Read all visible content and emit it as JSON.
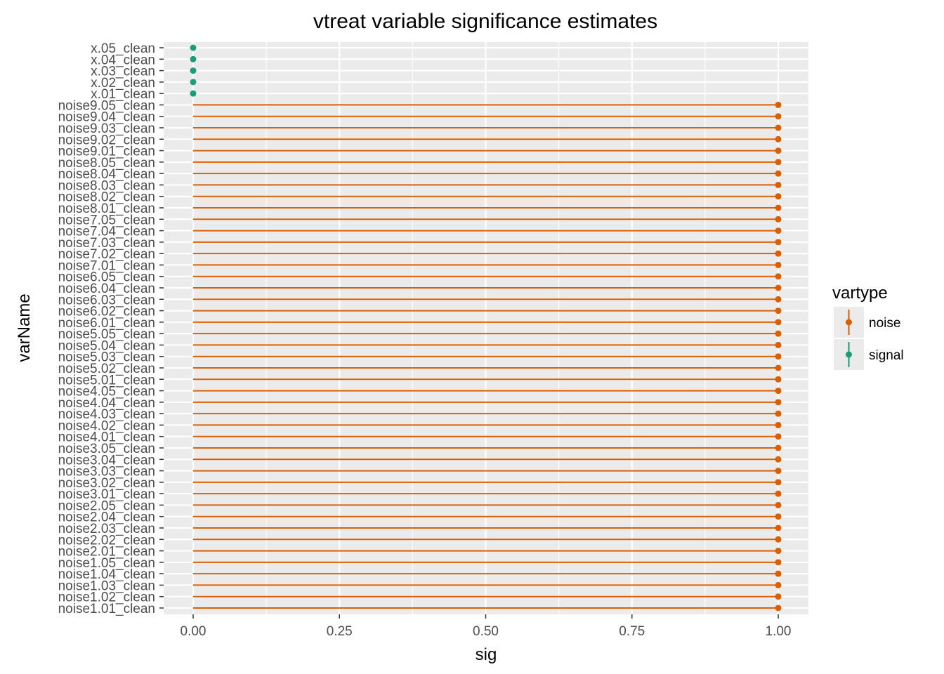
{
  "chart_data": {
    "type": "lollipop",
    "title": "vtreat variable significance estimates",
    "xlabel": "sig",
    "ylabel": "varName",
    "xlim": [
      -0.06,
      1.05
    ],
    "xticks": [
      0.0,
      0.25,
      0.5,
      0.75,
      1.0
    ],
    "xtick_labels": [
      "0.00",
      "0.25",
      "0.50",
      "0.75",
      "1.00"
    ],
    "grid": true,
    "legend": {
      "title": "vartype",
      "placement": "right",
      "entries": [
        {
          "label": "noise",
          "color": "#d95f02"
        },
        {
          "label": "signal",
          "color": "#1b9e77"
        }
      ]
    },
    "colors": {
      "panel": "#ebebeb",
      "grid": "#ffffff",
      "noise": "#d95f02",
      "signal": "#1b9e77"
    },
    "points": [
      {
        "name": "x.05_clean",
        "sig": 0.0,
        "vartype": "signal"
      },
      {
        "name": "x.04_clean",
        "sig": 0.0,
        "vartype": "signal"
      },
      {
        "name": "x.03_clean",
        "sig": 0.0,
        "vartype": "signal"
      },
      {
        "name": "x.02_clean",
        "sig": 0.0,
        "vartype": "signal"
      },
      {
        "name": "x.01_clean",
        "sig": 0.0,
        "vartype": "signal"
      },
      {
        "name": "noise9.05_clean",
        "sig": 1.0,
        "vartype": "noise"
      },
      {
        "name": "noise9.04_clean",
        "sig": 1.0,
        "vartype": "noise"
      },
      {
        "name": "noise9.03_clean",
        "sig": 1.0,
        "vartype": "noise"
      },
      {
        "name": "noise9.02_clean",
        "sig": 1.0,
        "vartype": "noise"
      },
      {
        "name": "noise9.01_clean",
        "sig": 1.0,
        "vartype": "noise"
      },
      {
        "name": "noise8.05_clean",
        "sig": 1.0,
        "vartype": "noise"
      },
      {
        "name": "noise8.04_clean",
        "sig": 1.0,
        "vartype": "noise"
      },
      {
        "name": "noise8.03_clean",
        "sig": 1.0,
        "vartype": "noise"
      },
      {
        "name": "noise8.02_clean",
        "sig": 1.0,
        "vartype": "noise"
      },
      {
        "name": "noise8.01_clean",
        "sig": 1.0,
        "vartype": "noise"
      },
      {
        "name": "noise7.05_clean",
        "sig": 1.0,
        "vartype": "noise"
      },
      {
        "name": "noise7.04_clean",
        "sig": 1.0,
        "vartype": "noise"
      },
      {
        "name": "noise7.03_clean",
        "sig": 1.0,
        "vartype": "noise"
      },
      {
        "name": "noise7.02_clean",
        "sig": 1.0,
        "vartype": "noise"
      },
      {
        "name": "noise7.01_clean",
        "sig": 1.0,
        "vartype": "noise"
      },
      {
        "name": "noise6.05_clean",
        "sig": 1.0,
        "vartype": "noise"
      },
      {
        "name": "noise6.04_clean",
        "sig": 1.0,
        "vartype": "noise"
      },
      {
        "name": "noise6.03_clean",
        "sig": 1.0,
        "vartype": "noise"
      },
      {
        "name": "noise6.02_clean",
        "sig": 1.0,
        "vartype": "noise"
      },
      {
        "name": "noise6.01_clean",
        "sig": 1.0,
        "vartype": "noise"
      },
      {
        "name": "noise5.05_clean",
        "sig": 1.0,
        "vartype": "noise"
      },
      {
        "name": "noise5.04_clean",
        "sig": 1.0,
        "vartype": "noise"
      },
      {
        "name": "noise5.03_clean",
        "sig": 1.0,
        "vartype": "noise"
      },
      {
        "name": "noise5.02_clean",
        "sig": 1.0,
        "vartype": "noise"
      },
      {
        "name": "noise5.01_clean",
        "sig": 1.0,
        "vartype": "noise"
      },
      {
        "name": "noise4.05_clean",
        "sig": 1.0,
        "vartype": "noise"
      },
      {
        "name": "noise4.04_clean",
        "sig": 1.0,
        "vartype": "noise"
      },
      {
        "name": "noise4.03_clean",
        "sig": 1.0,
        "vartype": "noise"
      },
      {
        "name": "noise4.02_clean",
        "sig": 1.0,
        "vartype": "noise"
      },
      {
        "name": "noise4.01_clean",
        "sig": 1.0,
        "vartype": "noise"
      },
      {
        "name": "noise3.05_clean",
        "sig": 1.0,
        "vartype": "noise"
      },
      {
        "name": "noise3.04_clean",
        "sig": 1.0,
        "vartype": "noise"
      },
      {
        "name": "noise3.03_clean",
        "sig": 1.0,
        "vartype": "noise"
      },
      {
        "name": "noise3.02_clean",
        "sig": 1.0,
        "vartype": "noise"
      },
      {
        "name": "noise3.01_clean",
        "sig": 1.0,
        "vartype": "noise"
      },
      {
        "name": "noise2.05_clean",
        "sig": 1.0,
        "vartype": "noise"
      },
      {
        "name": "noise2.04_clean",
        "sig": 1.0,
        "vartype": "noise"
      },
      {
        "name": "noise2.03_clean",
        "sig": 1.0,
        "vartype": "noise"
      },
      {
        "name": "noise2.02_clean",
        "sig": 1.0,
        "vartype": "noise"
      },
      {
        "name": "noise2.01_clean",
        "sig": 1.0,
        "vartype": "noise"
      },
      {
        "name": "noise1.05_clean",
        "sig": 1.0,
        "vartype": "noise"
      },
      {
        "name": "noise1.04_clean",
        "sig": 1.0,
        "vartype": "noise"
      },
      {
        "name": "noise1.03_clean",
        "sig": 1.0,
        "vartype": "noise"
      },
      {
        "name": "noise1.02_clean",
        "sig": 1.0,
        "vartype": "noise"
      },
      {
        "name": "noise1.01_clean",
        "sig": 1.0,
        "vartype": "noise"
      }
    ]
  }
}
